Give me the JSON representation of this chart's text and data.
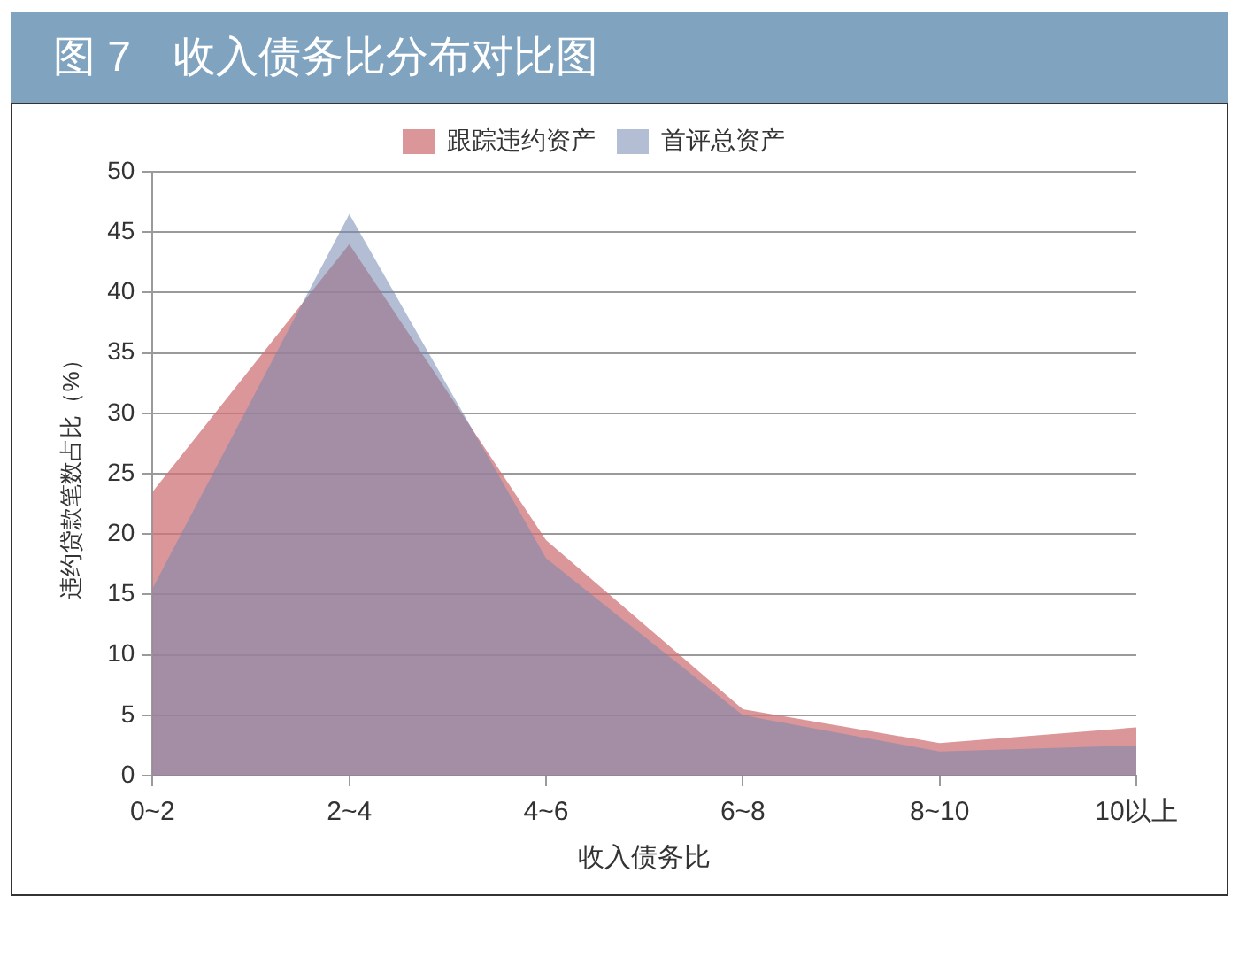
{
  "chart_data": {
    "type": "area",
    "title": "图 7　收入债务比分布对比图",
    "xlabel": "收入债务比",
    "ylabel": "违约贷款笔数占比（%）",
    "categories": [
      "0~2",
      "2~4",
      "4~6",
      "6~8",
      "8~10",
      "10以上"
    ],
    "series": [
      {
        "name": "跟踪违约资产",
        "color": "#cf7377",
        "values": [
          23.5,
          44,
          19.5,
          5.5,
          2.7,
          4
        ]
      },
      {
        "name": "首评总资产",
        "color": "#7588b0",
        "values": [
          15.5,
          46.5,
          18,
          5,
          2,
          2.5
        ]
      }
    ],
    "ylim": [
      0,
      50
    ],
    "yticks": [
      0,
      5,
      10,
      15,
      20,
      25,
      30,
      35,
      40,
      45,
      50
    ],
    "grid": "y",
    "legend": "top"
  }
}
